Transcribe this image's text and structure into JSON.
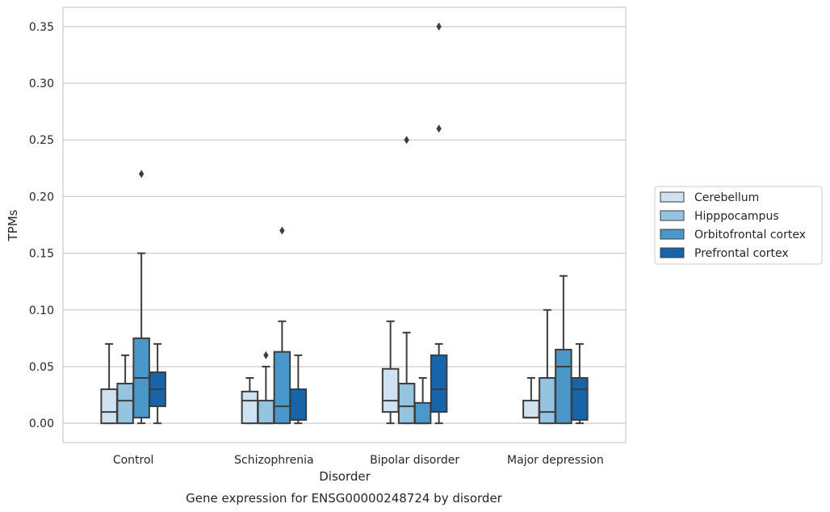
{
  "chart_data": {
    "type": "boxplot",
    "caption": "Gene expression for ENSG00000248724 by disorder",
    "xlabel": "Disorder",
    "ylabel": "TPMs",
    "ylim": [
      -0.017,
      0.367
    ],
    "yticks": [
      "0.00",
      "0.05",
      "0.10",
      "0.15",
      "0.20",
      "0.25",
      "0.30",
      "0.35"
    ],
    "ytick_values": [
      0,
      0.05,
      0.1,
      0.15,
      0.2,
      0.25,
      0.3,
      0.35
    ],
    "grid": "horizontal",
    "legend_position": "right",
    "categories": [
      "Control",
      "Schizophrenia",
      "Bipolar disorder",
      "Major depression"
    ],
    "series": [
      {
        "name": "Cerebellum",
        "color": "#d0e1f2",
        "boxes": [
          {
            "whislo": 0,
            "q1": 0,
            "med": 0.01,
            "q3": 0.03,
            "whishi": 0.07,
            "fliers": []
          },
          {
            "whislo": 0,
            "q1": 0,
            "med": 0.02,
            "q3": 0.028,
            "whishi": 0.04,
            "fliers": []
          },
          {
            "whislo": 0,
            "q1": 0.01,
            "med": 0.02,
            "q3": 0.048,
            "whishi": 0.09,
            "fliers": []
          },
          {
            "whislo": 0.005,
            "q1": 0.005,
            "med": 0.005,
            "q3": 0.02,
            "whishi": 0.04,
            "fliers": []
          }
        ]
      },
      {
        "name": "Hipppocampus",
        "color": "#94c4df",
        "boxes": [
          {
            "whislo": 0,
            "q1": 0,
            "med": 0.02,
            "q3": 0.035,
            "whishi": 0.06,
            "fliers": []
          },
          {
            "whislo": 0,
            "q1": 0,
            "med": 0,
            "q3": 0.02,
            "whishi": 0.05,
            "fliers": [
              0.06
            ]
          },
          {
            "whislo": 0,
            "q1": 0,
            "med": 0.015,
            "q3": 0.035,
            "whishi": 0.08,
            "fliers": [
              0.25
            ]
          },
          {
            "whislo": 0,
            "q1": 0,
            "med": 0.01,
            "q3": 0.04,
            "whishi": 0.1,
            "fliers": []
          }
        ]
      },
      {
        "name": "Orbitofrontal cortex",
        "color": "#4a98c9",
        "boxes": [
          {
            "whislo": 0,
            "q1": 0.005,
            "med": 0.04,
            "q3": 0.075,
            "whishi": 0.15,
            "fliers": [
              0.22
            ]
          },
          {
            "whislo": 0,
            "q1": 0,
            "med": 0.015,
            "q3": 0.063,
            "whishi": 0.09,
            "fliers": [
              0.17
            ]
          },
          {
            "whislo": 0,
            "q1": 0,
            "med": 0,
            "q3": 0.018,
            "whishi": 0.04,
            "fliers": []
          },
          {
            "whislo": 0,
            "q1": 0,
            "med": 0.05,
            "q3": 0.065,
            "whishi": 0.13,
            "fliers": []
          }
        ]
      },
      {
        "name": "Prefrontal cortex",
        "color": "#1764ab",
        "boxes": [
          {
            "whislo": 0,
            "q1": 0.015,
            "med": 0.03,
            "q3": 0.045,
            "whishi": 0.07,
            "fliers": []
          },
          {
            "whislo": 0,
            "q1": 0.003,
            "med": 0.003,
            "q3": 0.03,
            "whishi": 0.06,
            "fliers": []
          },
          {
            "whislo": 0,
            "q1": 0.01,
            "med": 0.03,
            "q3": 0.06,
            "whishi": 0.07,
            "fliers": [
              0.26,
              0.35
            ]
          },
          {
            "whislo": 0,
            "q1": 0.003,
            "med": 0.03,
            "q3": 0.04,
            "whishi": 0.07,
            "fliers": []
          }
        ]
      }
    ]
  }
}
